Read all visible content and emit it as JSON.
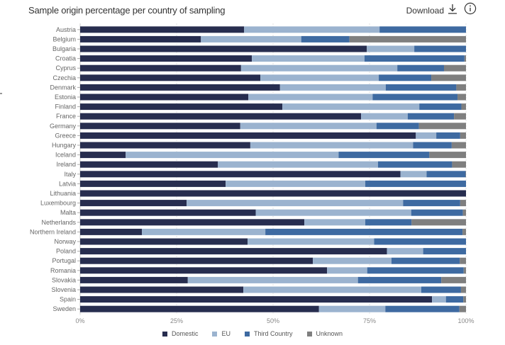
{
  "header": {
    "title": "Sample origin percentage per country of sampling",
    "download_label": "Download",
    "download_icon": "download-icon",
    "info_icon": "info-icon"
  },
  "colors": {
    "Domestic": "#272d4f",
    "EU": "#9bb3cf",
    "Third Country": "#3e6aa1",
    "Unknown": "#7f7f7f"
  },
  "chart_data": {
    "type": "bar",
    "orientation": "horizontal",
    "stacked": true,
    "title": "Sample origin percentage per country of sampling",
    "xlabel": "",
    "ylabel": "",
    "xlim": [
      0,
      100
    ],
    "x_ticks": [
      "0%",
      "25%",
      "50%",
      "75%",
      "100%"
    ],
    "grid": true,
    "legend": "bottom",
    "categories": [
      "Austria",
      "Belgium",
      "Bulgaria",
      "Croatia",
      "Cyprus",
      "Czechia",
      "Denmark",
      "Estonia",
      "Finland",
      "France",
      "Germany",
      "Greece",
      "Hungary",
      "Iceland",
      "Ireland",
      "Italy",
      "Latvia",
      "Lithuania",
      "Luxembourg",
      "Malta",
      "Netherlands",
      "Northern Ireland",
      "Norway",
      "Poland",
      "Portugal",
      "Romania",
      "Slovakia",
      "Slovenia",
      "Spain",
      "Sweden"
    ],
    "series": [
      {
        "name": "Domestic",
        "values": [
          42.5,
          31.3,
          74.3,
          44.5,
          41.7,
          46.7,
          51.8,
          43.6,
          52.4,
          72.8,
          41.5,
          87.0,
          44.1,
          11.8,
          35.7,
          83.0,
          37.7,
          100.0,
          27.6,
          45.5,
          58.1,
          16.0,
          43.4,
          79.5,
          60.3,
          64.0,
          27.9,
          42.3,
          91.2,
          61.9
        ]
      },
      {
        "name": "EU",
        "values": [
          35.1,
          26.0,
          12.3,
          29.2,
          40.5,
          30.7,
          27.4,
          32.2,
          35.5,
          12.1,
          35.3,
          5.3,
          42.2,
          55.2,
          41.5,
          6.8,
          36.2,
          0.0,
          56.1,
          40.3,
          15.8,
          32.0,
          32.8,
          9.4,
          20.4,
          10.4,
          44.1,
          46.1,
          3.6,
          17.2
        ]
      },
      {
        "name": "Third Country",
        "values": [
          22.4,
          12.5,
          13.4,
          25.9,
          12.1,
          13.6,
          18.3,
          22.0,
          10.9,
          12.0,
          11.0,
          6.2,
          10.0,
          23.5,
          19.2,
          10.1,
          26.1,
          0.0,
          14.8,
          13.4,
          12.0,
          51.1,
          23.8,
          11.1,
          17.7,
          25.0,
          21.6,
          10.3,
          4.5,
          19.2
        ]
      },
      {
        "name": "Unknown",
        "values": [
          0.0,
          30.2,
          0.0,
          0.4,
          5.7,
          9.0,
          2.5,
          2.2,
          1.2,
          3.1,
          12.2,
          1.5,
          3.7,
          9.5,
          3.6,
          0.1,
          0.0,
          0.0,
          1.5,
          0.8,
          14.1,
          0.9,
          0.0,
          0.0,
          1.6,
          0.6,
          6.4,
          1.3,
          0.7,
          1.7
        ]
      }
    ]
  }
}
